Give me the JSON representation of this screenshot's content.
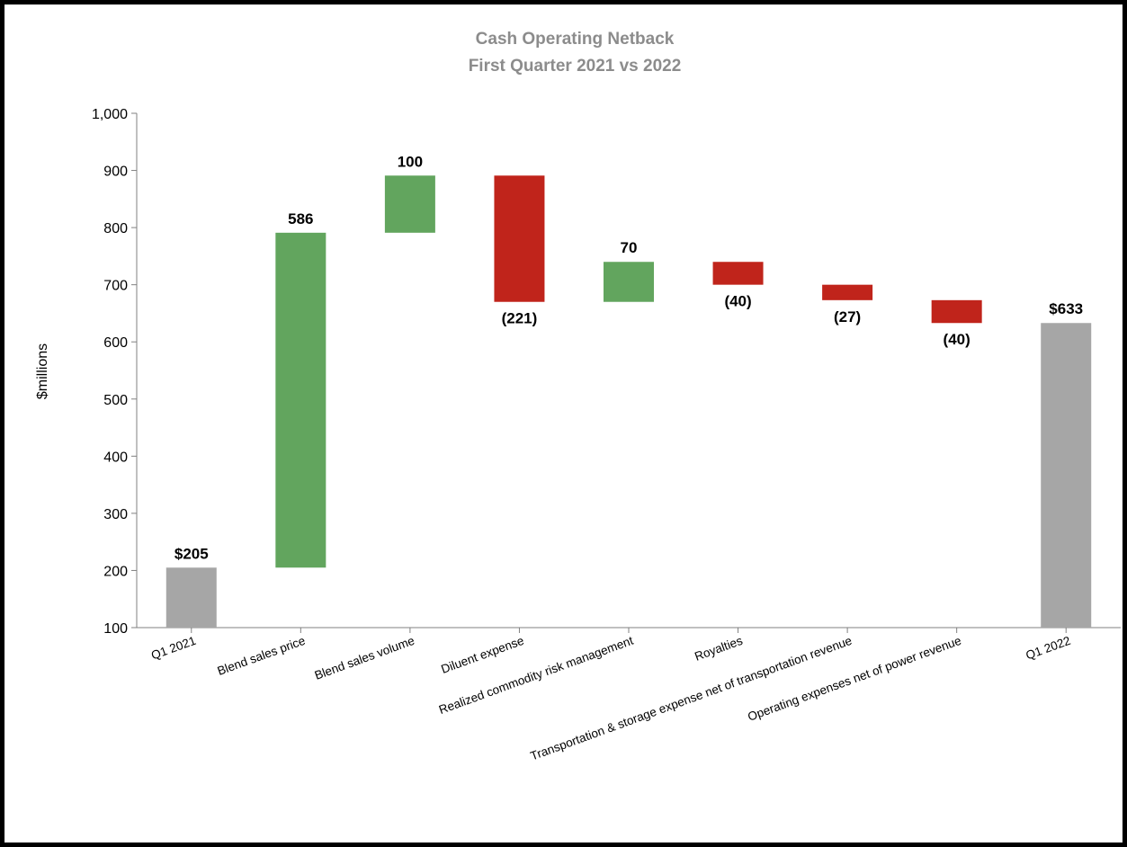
{
  "chart_data": {
    "type": "bar",
    "subtype": "waterfall",
    "title": "Cash Operating Netback",
    "subtitle": "First Quarter 2021 vs 2022",
    "ylabel": "$millions",
    "xlabel": "",
    "ylim": [
      100,
      1000
    ],
    "yticks": [
      "100",
      "200",
      "300",
      "400",
      "500",
      "600",
      "700",
      "800",
      "900",
      "1,000"
    ],
    "grid": false,
    "legend": "none",
    "colors": {
      "total": "#a6a6a6",
      "increase": "#62a55e",
      "decrease": "#c0241b",
      "title": "#8c8c8c"
    },
    "categories": [
      "Q1 2021",
      "Blend sales price",
      "Blend sales volume",
      "Diluent expense",
      "Realized commodity risk management",
      "Royalties",
      "Transportation & storage expense net of transportation revenue",
      "Operating expenses net of power revenue",
      "Q1 2022"
    ],
    "values": [
      205,
      586,
      100,
      -221,
      70,
      -40,
      -27,
      -40,
      633
    ],
    "kinds": [
      "total",
      "increase",
      "increase",
      "decrease",
      "increase",
      "decrease",
      "decrease",
      "decrease",
      "total"
    ],
    "data_labels": [
      "$205",
      "586",
      "100",
      "(221)",
      "70",
      "(40)",
      "(27)",
      "(40)",
      "$633"
    ]
  }
}
